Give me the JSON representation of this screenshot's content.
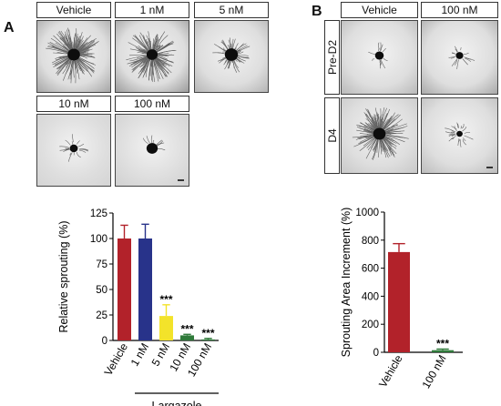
{
  "panel_a": {
    "letter": "A",
    "images": [
      {
        "label": "Vehicle",
        "sprout": 1.0,
        "core": 1.0,
        "bg": "#a4a4a4"
      },
      {
        "label": "1 nM",
        "sprout": 0.95,
        "core": 0.9,
        "bg": "#9a9a9a"
      },
      {
        "label": "5 nM",
        "sprout": 0.4,
        "core": 1.05,
        "bg": "#b4b4b4"
      },
      {
        "label": "10 nM",
        "sprout": 0.12,
        "core": 0.65,
        "bg": "#d4d4d4"
      },
      {
        "label": "100 nM",
        "sprout": 0.05,
        "core": 0.9,
        "bg": "#d0d0d0"
      }
    ]
  },
  "panel_b": {
    "letter": "B",
    "col_labels": [
      "Vehicle",
      "100 nM"
    ],
    "row_labels": [
      "Pre-D2",
      "D4"
    ],
    "images": [
      {
        "sprout": 0.08,
        "core": 0.7,
        "bg": "#b8b8b8"
      },
      {
        "sprout": 0.1,
        "core": 0.6,
        "bg": "#a8a8a8"
      },
      {
        "sprout": 1.0,
        "core": 1.0,
        "bg": "#c8c8c8"
      },
      {
        "sprout": 0.15,
        "core": 0.5,
        "bg": "#bcbcbc"
      }
    ]
  },
  "chart_data": [
    {
      "type": "bar",
      "ylabel": "Relative sprouting (%)",
      "ylim": [
        0,
        125
      ],
      "yticks": [
        "0",
        "25",
        "50",
        "75",
        "100",
        "125"
      ],
      "ytick_values": [
        0,
        25,
        50,
        75,
        100,
        125
      ],
      "categories": [
        "Vehicle",
        "1 nM",
        "5 nM",
        "10 nM",
        "100 nM"
      ],
      "values": [
        100,
        100,
        24,
        5,
        1
      ],
      "errors": [
        13,
        14,
        11,
        1,
        1
      ],
      "colors": [
        "#b2222a",
        "#28338a",
        "#f3e32a",
        "#2f7a3a",
        "#2f7a3a"
      ],
      "annotations": [
        "",
        "",
        "***",
        "***",
        "***"
      ],
      "group_label": "Largazole"
    },
    {
      "type": "bar",
      "ylabel": "Sprouting Area Increment (%)",
      "ylim": [
        0,
        1000
      ],
      "yticks": [
        "0",
        "200",
        "400",
        "600",
        "800",
        "1000"
      ],
      "ytick_values": [
        0,
        200,
        400,
        600,
        800,
        1000
      ],
      "categories": [
        "Vehicle",
        "100 nM"
      ],
      "values": [
        715,
        15
      ],
      "errors": [
        60,
        8
      ],
      "colors": [
        "#b2222a",
        "#2f7a3a"
      ],
      "annotations": [
        "",
        "***"
      ]
    }
  ]
}
